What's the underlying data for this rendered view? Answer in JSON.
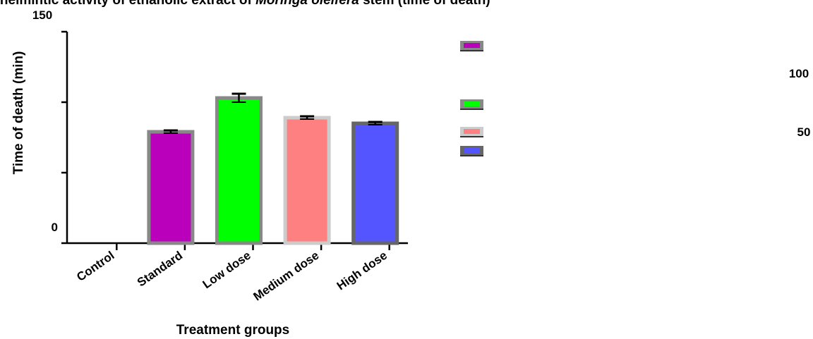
{
  "chart_data": {
    "type": "bar",
    "title_prefix": "nthelmintic activity of ethanolic extract of ",
    "title_italic": "Moringa oleifera",
    "title_suffix": " stem (time of death)",
    "xlabel": "Treatment groups",
    "ylabel": "Time of death (min)",
    "ylim": [
      0,
      150
    ],
    "y_ticks": [
      0,
      50,
      100,
      150
    ],
    "left_tick_labels": [
      "0",
      "150"
    ],
    "right_tick_labels": [
      "100",
      "50"
    ],
    "categories": [
      "Control",
      "Standard",
      "Low dose",
      "Medium dose",
      "High dose"
    ],
    "values": [
      0,
      79,
      103,
      89,
      85
    ],
    "errors": [
      0,
      1,
      3,
      1,
      1
    ],
    "bar_colors": [
      "#ffffff",
      "#bb00bb",
      "#00ff00",
      "#ff8080",
      "#5555ff"
    ],
    "bar_outline_colors": [
      "#888888",
      "#888888",
      "#888888",
      "#cccccc",
      "#666666"
    ],
    "legend": {
      "placement": "right",
      "swatches": [
        {
          "color": "#bb00bb",
          "outline": "#888888"
        },
        {
          "color": "#00ff00",
          "outline": "#888888"
        },
        {
          "color": "#ff8080",
          "outline": "#cccccc"
        },
        {
          "color": "#5555ff",
          "outline": "#666666"
        }
      ]
    },
    "grid": false
  }
}
